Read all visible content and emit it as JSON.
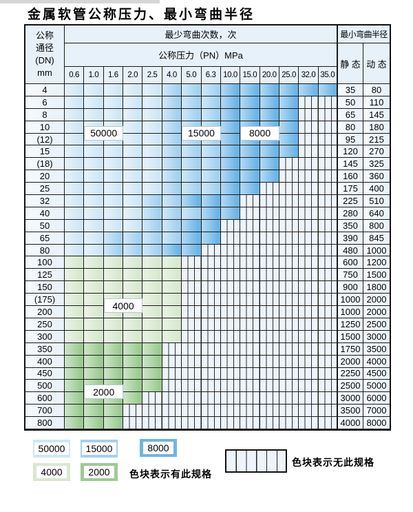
{
  "page": {
    "title": "金属软管公称压力、最小弯曲半径"
  },
  "colors": {
    "b1": "#cfe6f7",
    "b2": "#a3d1f0",
    "b3": "#6cb5e7",
    "g1": "#d7e8ce",
    "g2": "#9ccb92",
    "hatch": "#edf4fb"
  },
  "header": {
    "dn_lines": [
      "公称",
      "通径",
      "(DN)",
      "mm"
    ],
    "bend_cycles": "最少弯曲次数，次",
    "pressure": "公称压力（PN）MPa",
    "pressures": [
      "0.6",
      "1.0",
      "1.6",
      "2.0",
      "2.5",
      "4.0",
      "5.0",
      "6.3",
      "10.0",
      "15.0",
      "20.0",
      "25.0",
      "32.0",
      "35.0"
    ],
    "radius": "最小弯曲半径",
    "static": "静 态",
    "dynamic": "动 态"
  },
  "zone_legend_names": {
    "b1": "50000",
    "b2": "15000",
    "b3": "8000",
    "g1": "4000",
    "g2": "2000"
  },
  "rows": [
    {
      "dn": "4",
      "zones": [
        [
          "b1",
          5
        ],
        [
          "b2",
          3
        ],
        [
          "b3",
          6
        ]
      ],
      "static": "35",
      "dynamic": "80"
    },
    {
      "dn": "6",
      "zones": [
        [
          "b1",
          5
        ],
        [
          "b2",
          3
        ],
        [
          "b3",
          4
        ]
      ],
      "static": "50",
      "dynamic": "110"
    },
    {
      "dn": "8",
      "zones": [
        [
          "b1",
          5
        ],
        [
          "b2",
          3
        ],
        [
          "b3",
          4
        ]
      ],
      "static": "65",
      "dynamic": "145"
    },
    {
      "dn": "10",
      "zones": [
        [
          "b1",
          5
        ],
        [
          "b2",
          3
        ],
        [
          "b3",
          4
        ]
      ],
      "static": "80",
      "dynamic": "180"
    },
    {
      "dn": "(12)",
      "zones": [
        [
          "b1",
          5
        ],
        [
          "b2",
          3
        ],
        [
          "b3",
          4
        ]
      ],
      "static": "95",
      "dynamic": "215"
    },
    {
      "dn": "15",
      "zones": [
        [
          "b1",
          5
        ],
        [
          "b2",
          3
        ],
        [
          "b3",
          4
        ]
      ],
      "static": "120",
      "dynamic": "270"
    },
    {
      "dn": "(18)",
      "zones": [
        [
          "b1",
          5
        ],
        [
          "b2",
          3
        ],
        [
          "b3",
          3
        ]
      ],
      "static": "145",
      "dynamic": "325"
    },
    {
      "dn": "20",
      "zones": [
        [
          "b1",
          5
        ],
        [
          "b2",
          3
        ],
        [
          "b3",
          3
        ]
      ],
      "static": "160",
      "dynamic": "360"
    },
    {
      "dn": "25",
      "zones": [
        [
          "b1",
          5
        ],
        [
          "b2",
          3
        ],
        [
          "b3",
          2
        ]
      ],
      "static": "175",
      "dynamic": "400"
    },
    {
      "dn": "32",
      "zones": [
        [
          "b1",
          4
        ],
        [
          "b2",
          2
        ],
        [
          "b3",
          3
        ]
      ],
      "static": "225",
      "dynamic": "510"
    },
    {
      "dn": "40",
      "zones": [
        [
          "b1",
          4
        ],
        [
          "b2",
          3
        ],
        [
          "b3",
          2
        ]
      ],
      "static": "280",
      "dynamic": "640"
    },
    {
      "dn": "50",
      "zones": [
        [
          "b1",
          4
        ],
        [
          "b2",
          2
        ],
        [
          "b3",
          2
        ]
      ],
      "static": "350",
      "dynamic": "800"
    },
    {
      "dn": "65",
      "zones": [
        [
          "b1",
          2
        ],
        [
          "b2",
          4
        ],
        [
          "b3",
          2
        ]
      ],
      "static": "390",
      "dynamic": "845"
    },
    {
      "dn": "80",
      "zones": [
        [
          "b1",
          2
        ],
        [
          "b2",
          3
        ],
        [
          "b3",
          2
        ]
      ],
      "static": "480",
      "dynamic": "1000"
    },
    {
      "dn": "100",
      "zones": [
        [
          "g1",
          6
        ]
      ],
      "static": "600",
      "dynamic": "1200"
    },
    {
      "dn": "125",
      "zones": [
        [
          "g1",
          6
        ]
      ],
      "static": "750",
      "dynamic": "1500"
    },
    {
      "dn": "150",
      "zones": [
        [
          "g1",
          6
        ]
      ],
      "static": "900",
      "dynamic": "1800"
    },
    {
      "dn": "(175)",
      "zones": [
        [
          "g1",
          6
        ]
      ],
      "static": "1000",
      "dynamic": "2000"
    },
    {
      "dn": "200",
      "zones": [
        [
          "g1",
          6
        ]
      ],
      "static": "1000",
      "dynamic": "2000"
    },
    {
      "dn": "250",
      "zones": [
        [
          "g1",
          6
        ]
      ],
      "static": "1250",
      "dynamic": "2500"
    },
    {
      "dn": "300",
      "zones": [
        [
          "g1",
          6
        ]
      ],
      "static": "1500",
      "dynamic": "3000"
    },
    {
      "dn": "350",
      "zones": [
        [
          "g2",
          5
        ]
      ],
      "static": "1750",
      "dynamic": "3500"
    },
    {
      "dn": "400",
      "zones": [
        [
          "g2",
          5
        ]
      ],
      "static": "2000",
      "dynamic": "4000"
    },
    {
      "dn": "450",
      "zones": [
        [
          "g2",
          5
        ]
      ],
      "static": "2250",
      "dynamic": "4500"
    },
    {
      "dn": "500",
      "zones": [
        [
          "g2",
          5
        ]
      ],
      "static": "2500",
      "dynamic": "5000"
    },
    {
      "dn": "600",
      "zones": [
        [
          "g2",
          4
        ]
      ],
      "static": "3000",
      "dynamic": "6000"
    },
    {
      "dn": "700",
      "zones": [
        [
          "g2",
          3
        ]
      ],
      "static": "3500",
      "dynamic": "7000"
    },
    {
      "dn": "800",
      "zones": [
        [
          "g2",
          3
        ]
      ],
      "static": "4000",
      "dynamic": "8000"
    }
  ],
  "overlay_labels": [
    {
      "text": "50000",
      "col": 2,
      "span": 2,
      "row_after": 3
    },
    {
      "text": "15000",
      "col": 7,
      "span": 2,
      "row_after": 3
    },
    {
      "text": "8000",
      "col": 10,
      "span": 2,
      "row_after": 3
    },
    {
      "text": "4000",
      "col": 3,
      "span": 2,
      "row_after": 17
    },
    {
      "text": "2000",
      "col": 2,
      "span": 2,
      "row_after": 24
    }
  ],
  "legend": {
    "items": [
      {
        "label": "50000",
        "zone": "b1"
      },
      {
        "label": "15000",
        "zone": "b2"
      },
      {
        "label": "8000",
        "zone": "b3"
      },
      {
        "label": "4000",
        "zone": "g1"
      },
      {
        "label": "2000",
        "zone": "g2"
      }
    ],
    "has_spec": "色块表示有此规格",
    "no_spec": "色块表示无此规格"
  }
}
